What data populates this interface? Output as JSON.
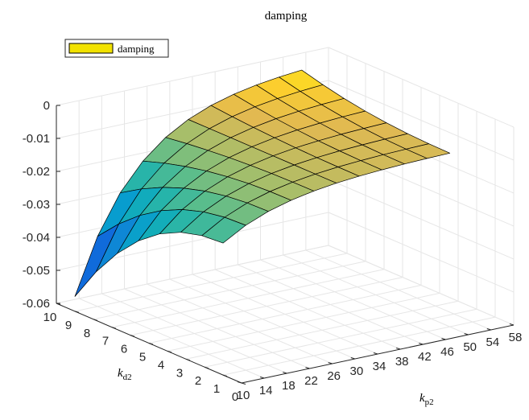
{
  "chart_data": {
    "type": "surface3d",
    "title": "damping",
    "zlabel": "",
    "x_axis": {
      "label_main": "k",
      "label_sub": "p2",
      "ticks": [
        "10",
        "14",
        "18",
        "22",
        "26",
        "30",
        "34",
        "38",
        "42",
        "46",
        "50",
        "54",
        "58"
      ],
      "range": [
        10,
        58
      ]
    },
    "y_axis": {
      "label_main": "k",
      "label_sub": "d2",
      "ticks": [
        "0",
        "1",
        "2",
        "3",
        "4",
        "5",
        "6",
        "7",
        "8",
        "9",
        "10"
      ],
      "range": [
        0,
        10
      ]
    },
    "z_axis": {
      "ticks": [
        "0",
        "-0.01",
        "-0.02",
        "-0.03",
        "-0.04",
        "-0.05",
        "-0.06"
      ],
      "range": [
        -0.06,
        0
      ]
    },
    "legend": {
      "entries": [
        {
          "name": "damping",
          "color": "#f2e200"
        }
      ],
      "placement": "top-left"
    },
    "grid": true,
    "colormap": "parula",
    "surface": {
      "x_range": [
        10,
        50
      ],
      "y_range": [
        1,
        9
      ],
      "corners": {
        "x10_y9": -0.0555,
        "x10_y1": -0.02,
        "x50_y9": 0.0,
        "x50_y1": -0.007
      },
      "description_free": true
    }
  }
}
